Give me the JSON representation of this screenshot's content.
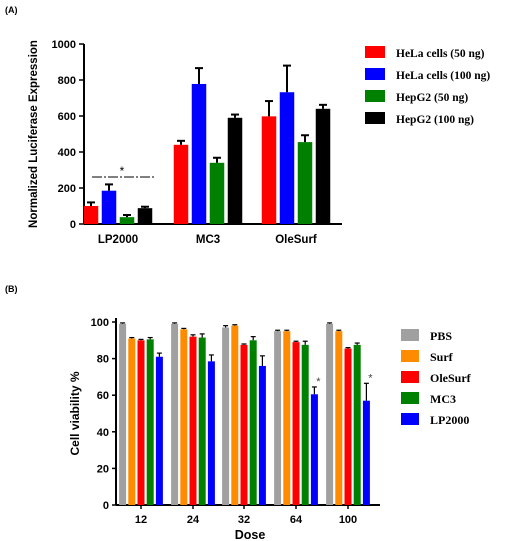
{
  "chart_data": [
    {
      "panel_label": "(A)",
      "type": "bar",
      "ylabel": "Normalized Luciferase Expression",
      "ylim": [
        0,
        1000
      ],
      "yticks": [
        0,
        200,
        400,
        600,
        800,
        1000
      ],
      "categories": [
        "LP2000",
        "MC3",
        "OleSurf"
      ],
      "legend_position": "right",
      "series": [
        {
          "name": "HeLa cells (50 ng)",
          "color": "#ff0000",
          "values": [
            100,
            440,
            598
          ],
          "errors": [
            20,
            22,
            85
          ]
        },
        {
          "name": "HeLa cells (100 ng)",
          "color": "#0000ff",
          "values": [
            185,
            778,
            732
          ],
          "errors": [
            35,
            88,
            148
          ]
        },
        {
          "name": "HepG2 (50 ng)",
          "color": "#008000",
          "values": [
            38,
            340,
            455
          ],
          "errors": [
            12,
            28,
            38
          ]
        },
        {
          "name": "HepG2 (100 ng)",
          "color": "#000000",
          "values": [
            88,
            590,
            640
          ],
          "errors": [
            8,
            18,
            22
          ]
        }
      ],
      "annotations": [
        {
          "text": "*",
          "near": "LP2000"
        }
      ]
    },
    {
      "panel_label": "(B)",
      "type": "bar",
      "xlabel": "Dose",
      "ylabel": "Cell viability %",
      "ylim": [
        0,
        100
      ],
      "yticks": [
        0,
        20,
        40,
        60,
        80,
        100
      ],
      "categories": [
        "12",
        "24",
        "32",
        "64",
        "100"
      ],
      "legend_position": "right",
      "series": [
        {
          "name": "PBS",
          "color": "#a0a0a0",
          "values": [
            99,
            99,
            97,
            95,
            99
          ],
          "errors": [
            0.5,
            0.5,
            1,
            0.5,
            0.5
          ]
        },
        {
          "name": "Surf",
          "color": "#ff8c00",
          "values": [
            91,
            96,
            98,
            95,
            95
          ],
          "errors": [
            0.5,
            0.5,
            0.5,
            0.5,
            0.5
          ]
        },
        {
          "name": "OleSurf",
          "color": "#ff0000",
          "values": [
            90,
            92,
            87.5,
            89,
            85.5
          ],
          "errors": [
            0.5,
            1,
            0.5,
            0.5,
            0.5
          ]
        },
        {
          "name": "MC3",
          "color": "#008000",
          "values": [
            90.5,
            91.5,
            90,
            87.5,
            87.5
          ],
          "errors": [
            1,
            2,
            2,
            2,
            1
          ]
        },
        {
          "name": "LP2000",
          "color": "#0000ff",
          "values": [
            81,
            78.5,
            76,
            60.5,
            57
          ],
          "errors": [
            2,
            3.5,
            5.5,
            4,
            9.5
          ]
        }
      ],
      "annotations": [
        {
          "text": "*",
          "near": "64"
        },
        {
          "text": "*",
          "near": "100"
        }
      ]
    }
  ]
}
